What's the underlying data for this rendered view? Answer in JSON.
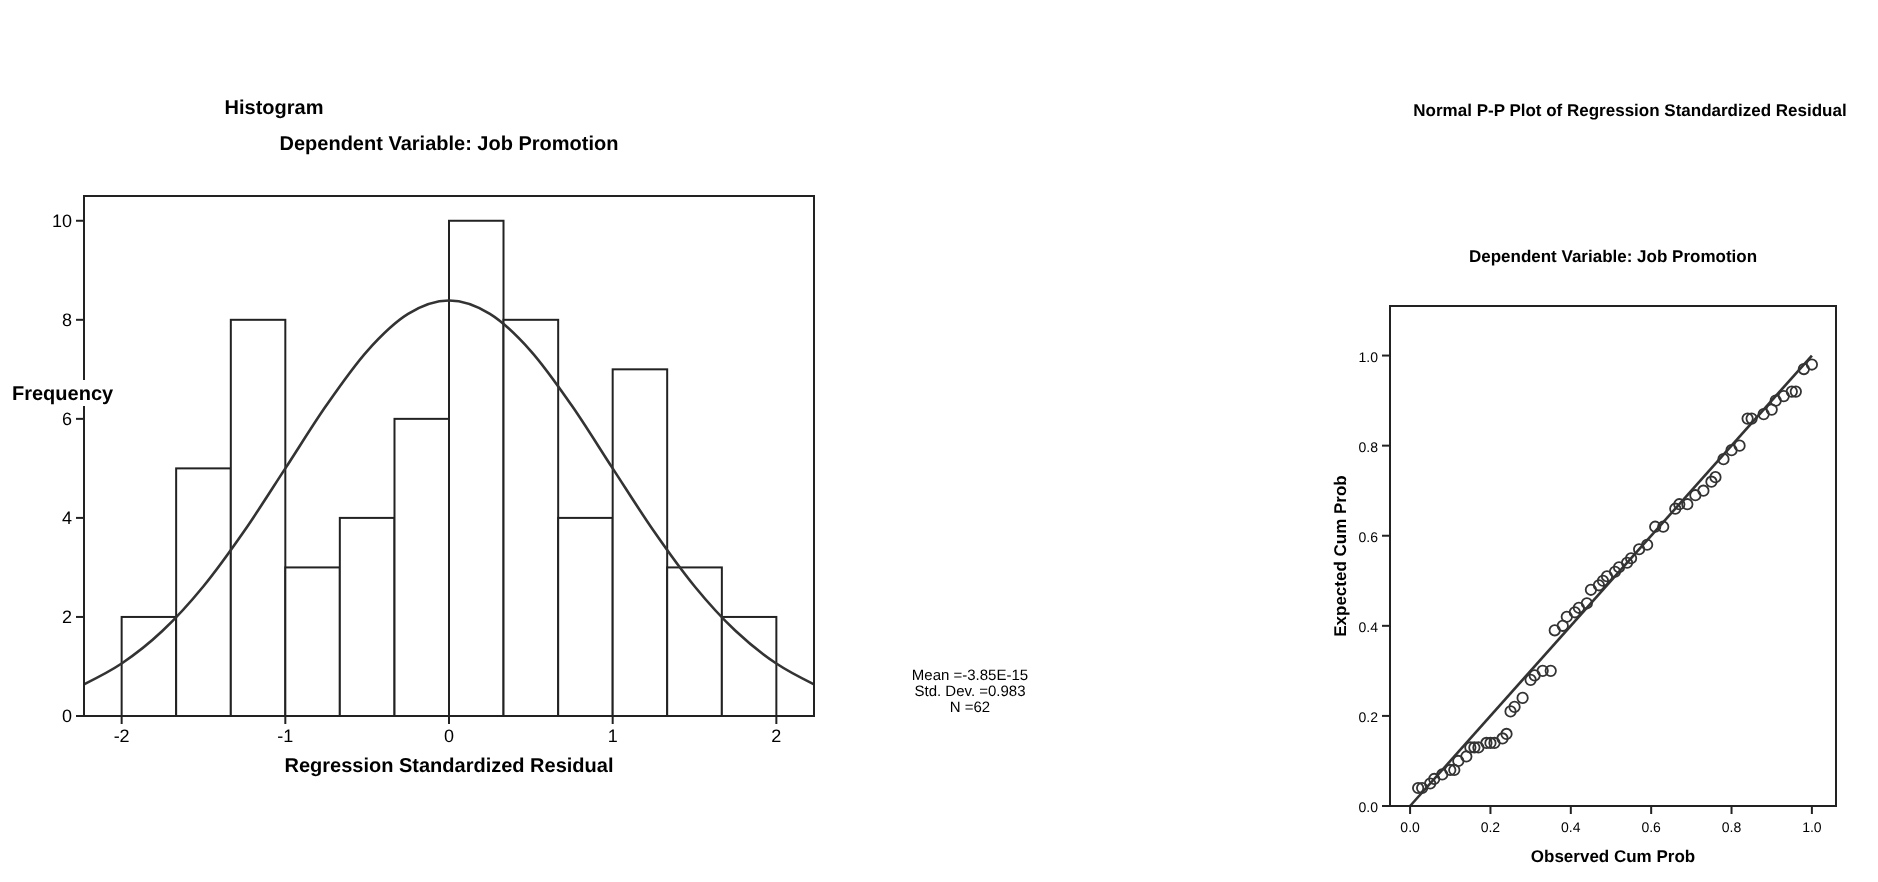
{
  "chart_data": [
    {
      "type": "histogram",
      "title": "Histogram",
      "subtitle": "Dependent Variable: Job Promotion",
      "xlabel": "Regression Standardized Residual",
      "ylabel": "Frequency",
      "bins": [
        -2,
        -1.667,
        -1.333,
        -1,
        -0.667,
        -0.333,
        0,
        0.333,
        0.667,
        1,
        1.333,
        1.667,
        2
      ],
      "values": [
        2,
        5,
        8,
        3,
        4,
        6,
        10,
        8,
        4,
        7,
        3,
        2
      ],
      "color": "#ffffff",
      "series": [
        {
          "type": "line",
          "color": "#333333",
          "x": [
            -2.23,
            -2,
            -1.75,
            -1.5,
            -1.25,
            -1,
            -0.75,
            -0.5,
            -0.25,
            0,
            0.25,
            0.5,
            0.75,
            1,
            1.25,
            1.5,
            1.75,
            2,
            2.23
          ],
          "values": [
            0.64,
            1.06,
            1.72,
            2.62,
            3.74,
            5.0,
            6.27,
            7.37,
            8.12,
            8.39,
            8.12,
            7.37,
            6.27,
            5.0,
            3.74,
            2.62,
            1.72,
            1.06,
            0.64
          ]
        }
      ],
      "xlim": [
        -2.23,
        2.23
      ],
      "ylim": [
        0,
        10.5
      ],
      "xticks": [
        -2,
        -1,
        0,
        1,
        2
      ],
      "yticks": [
        0,
        2,
        4,
        6,
        8,
        10
      ],
      "grid": false,
      "annotations": [
        "Mean =-3.85E-15",
        "Std. Dev. =0.983",
        "N =62"
      ]
    },
    {
      "type": "scatter",
      "title": "Normal P-P Plot of Regression Standardized Residual",
      "subtitle": "Dependent Variable: Job Promotion",
      "xlabel": "Observed Cum Prob",
      "ylabel": "Expected Cum Prob",
      "series": [
        {
          "color": "#333333",
          "marker": "circle",
          "x": [
            0.02,
            0.03,
            0.05,
            0.06,
            0.08,
            0.1,
            0.11,
            0.12,
            0.14,
            0.15,
            0.16,
            0.17,
            0.19,
            0.2,
            0.21,
            0.23,
            0.24,
            0.25,
            0.26,
            0.28,
            0.3,
            0.31,
            0.33,
            0.35,
            0.36,
            0.38,
            0.39,
            0.41,
            0.42,
            0.44,
            0.45,
            0.47,
            0.48,
            0.49,
            0.51,
            0.52,
            0.54,
            0.55,
            0.57,
            0.59,
            0.61,
            0.63,
            0.66,
            0.67,
            0.69,
            0.71,
            0.73,
            0.75,
            0.76,
            0.78,
            0.8,
            0.82,
            0.84,
            0.85,
            0.88,
            0.9,
            0.91,
            0.93,
            0.95,
            0.96,
            0.98,
            1.0
          ],
          "values": [
            0.04,
            0.04,
            0.05,
            0.06,
            0.07,
            0.08,
            0.08,
            0.1,
            0.11,
            0.13,
            0.13,
            0.13,
            0.14,
            0.14,
            0.14,
            0.15,
            0.16,
            0.21,
            0.22,
            0.24,
            0.28,
            0.29,
            0.3,
            0.3,
            0.39,
            0.4,
            0.42,
            0.43,
            0.44,
            0.45,
            0.48,
            0.49,
            0.5,
            0.51,
            0.52,
            0.53,
            0.54,
            0.55,
            0.57,
            0.58,
            0.62,
            0.62,
            0.66,
            0.67,
            0.67,
            0.69,
            0.7,
            0.72,
            0.73,
            0.77,
            0.79,
            0.8,
            0.86,
            0.86,
            0.87,
            0.88,
            0.9,
            0.91,
            0.92,
            0.92,
            0.97,
            0.98
          ]
        },
        {
          "type": "line",
          "color": "#333333",
          "x": [
            0,
            1
          ],
          "values": [
            0,
            1
          ]
        }
      ],
      "xlim": [
        -0.05,
        1.06
      ],
      "ylim": [
        0,
        1.11
      ],
      "xticks": [
        {
          "value": 0,
          "label": "0.0"
        },
        {
          "value": 0.2,
          "label": "0.2"
        },
        {
          "value": 0.4,
          "label": "0.4"
        },
        {
          "value": 0.6,
          "label": "0.6"
        },
        {
          "value": 0.8,
          "label": "0.8"
        },
        {
          "value": 1,
          "label": "1.0"
        }
      ],
      "yticks": [
        {
          "value": 0,
          "label": "0.0"
        },
        {
          "value": 0.2,
          "label": "0.2"
        },
        {
          "value": 0.4,
          "label": "0.4"
        },
        {
          "value": 0.6,
          "label": "0.6"
        },
        {
          "value": 0.8,
          "label": "0.8"
        },
        {
          "value": 1,
          "label": "1.0"
        }
      ],
      "grid": false
    }
  ]
}
